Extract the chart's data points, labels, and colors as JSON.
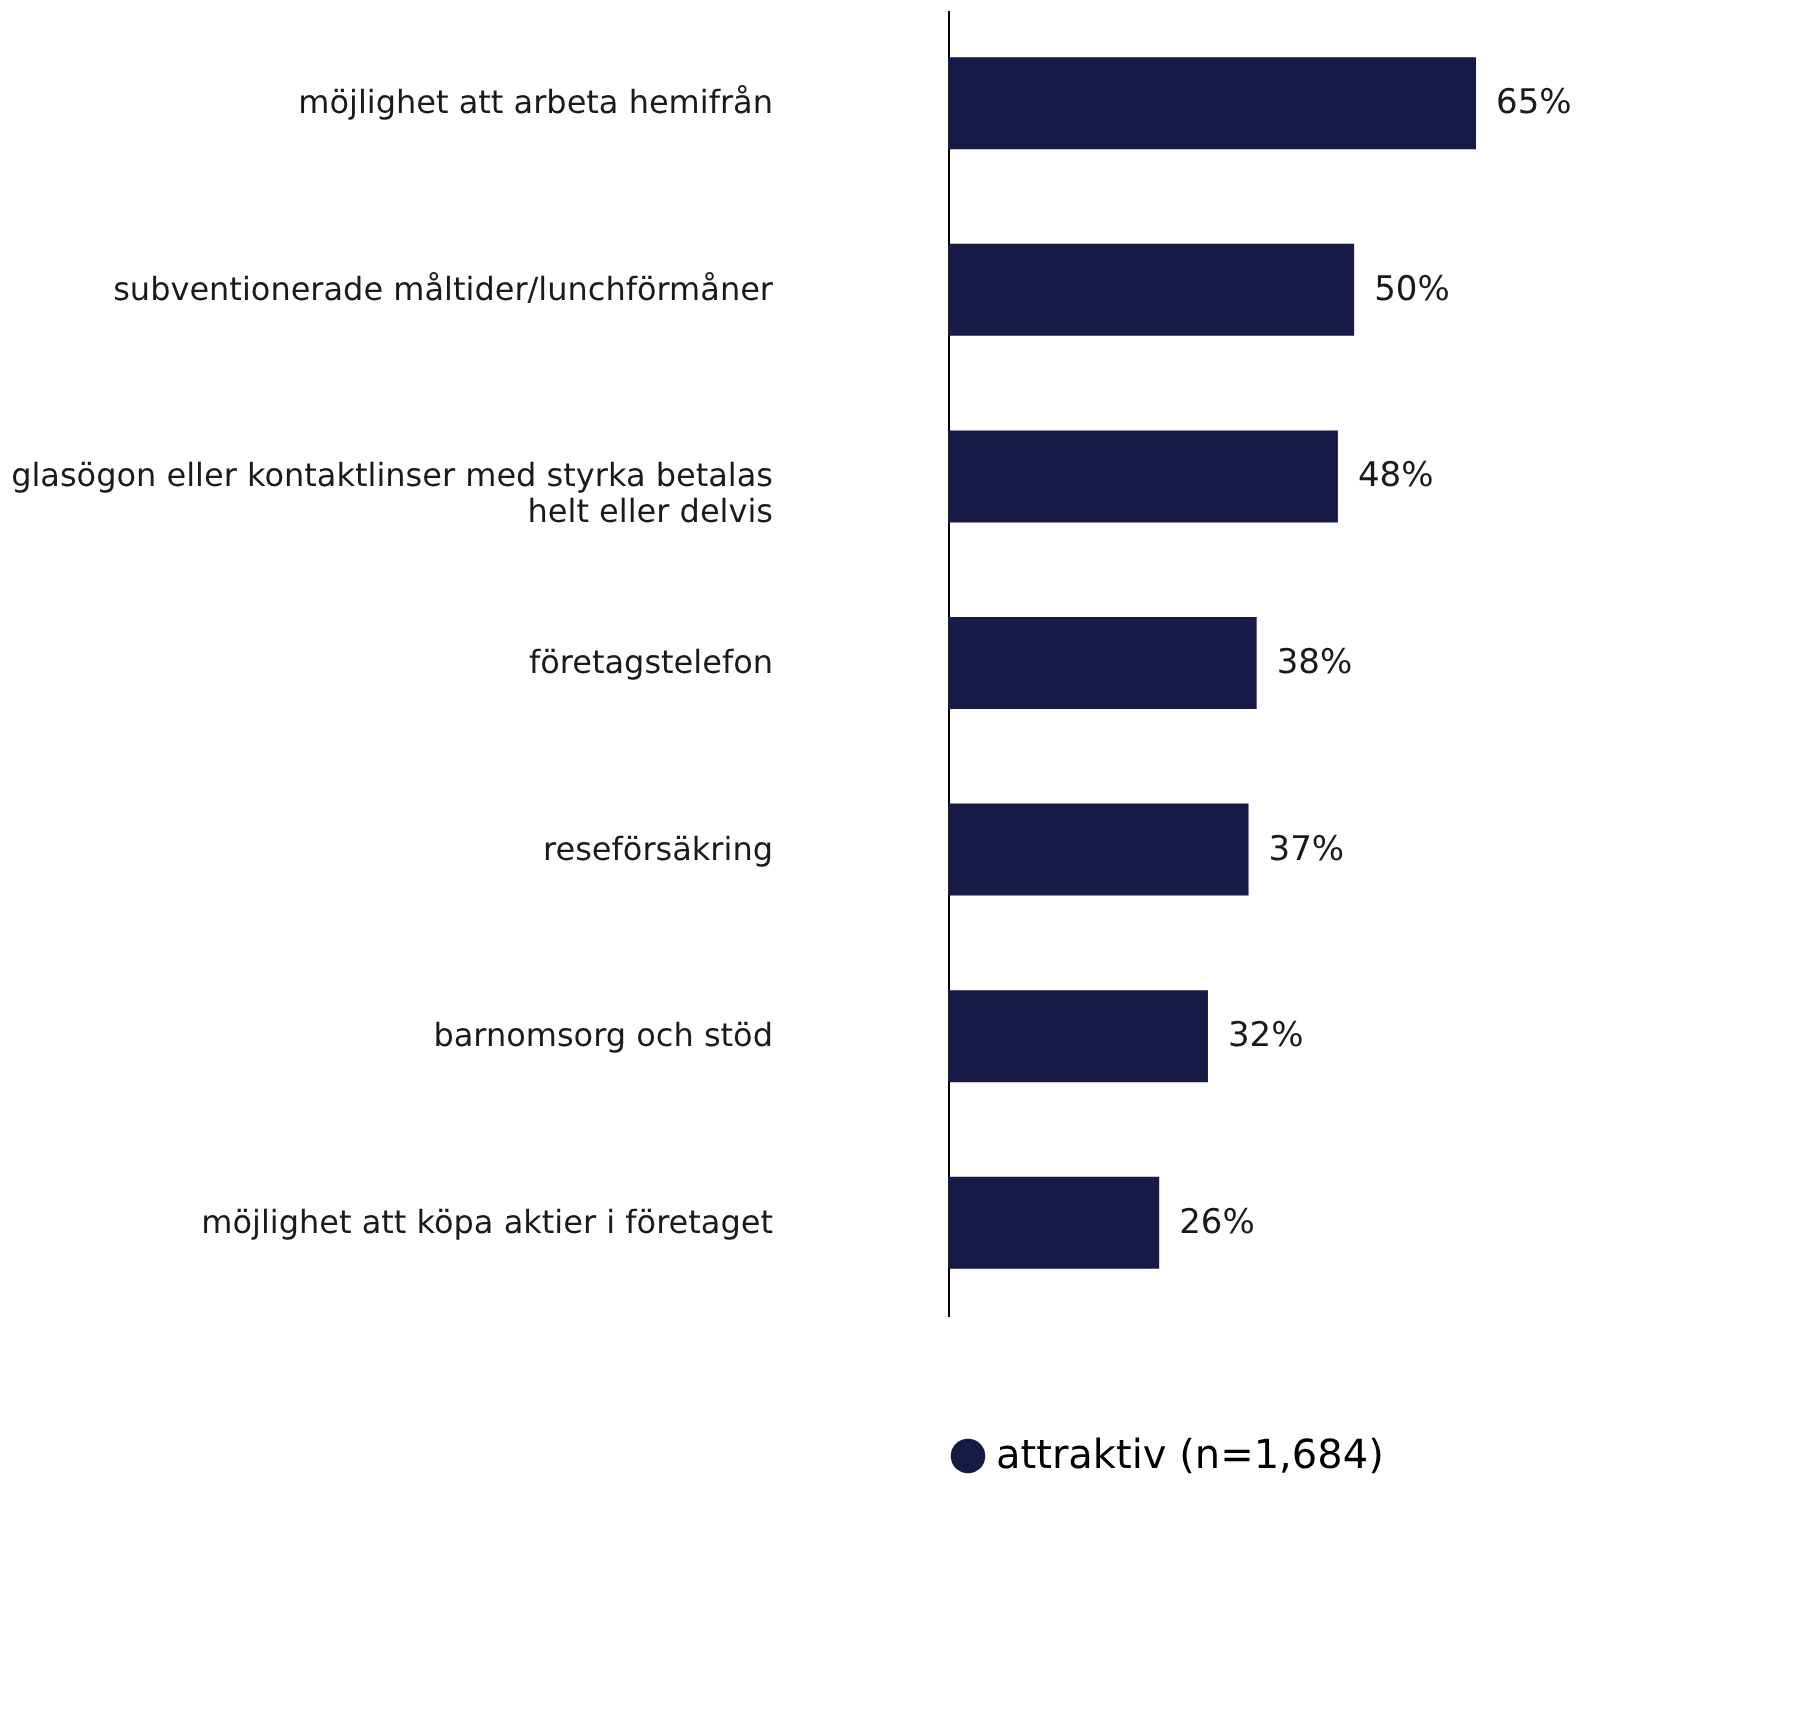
{
  "chart_data": {
    "type": "bar",
    "orientation": "horizontal",
    "categories": [
      "möjlighet att arbeta hemifrån",
      "subventionerade måltider/lunchförmåner",
      "glasögon eller kontaktlinser med styrka betalas\nhelt eller delvis",
      "företagstelefon",
      "reseförsäkring",
      "barnomsorg och stöd",
      "möjlighet att köpa aktier i företaget"
    ],
    "series": [
      {
        "name": "attraktiv (n=1,684)",
        "color": "#161a45",
        "values": [
          65,
          50,
          48,
          38,
          37,
          32,
          26
        ],
        "value_labels": [
          "65%",
          "50%",
          "48%",
          "38%",
          "37%",
          "32%",
          "26%"
        ]
      }
    ],
    "legend": "bottom"
  }
}
